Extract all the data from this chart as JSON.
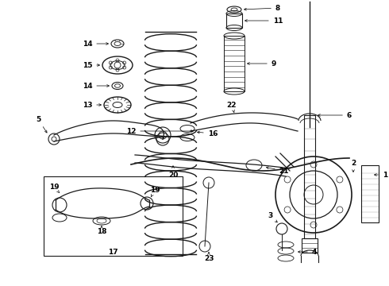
{
  "bg_color": "#ffffff",
  "fig_width": 4.9,
  "fig_height": 3.6,
  "dpi": 100,
  "line_color": "#1a1a1a",
  "label_fontsize": 6.5
}
